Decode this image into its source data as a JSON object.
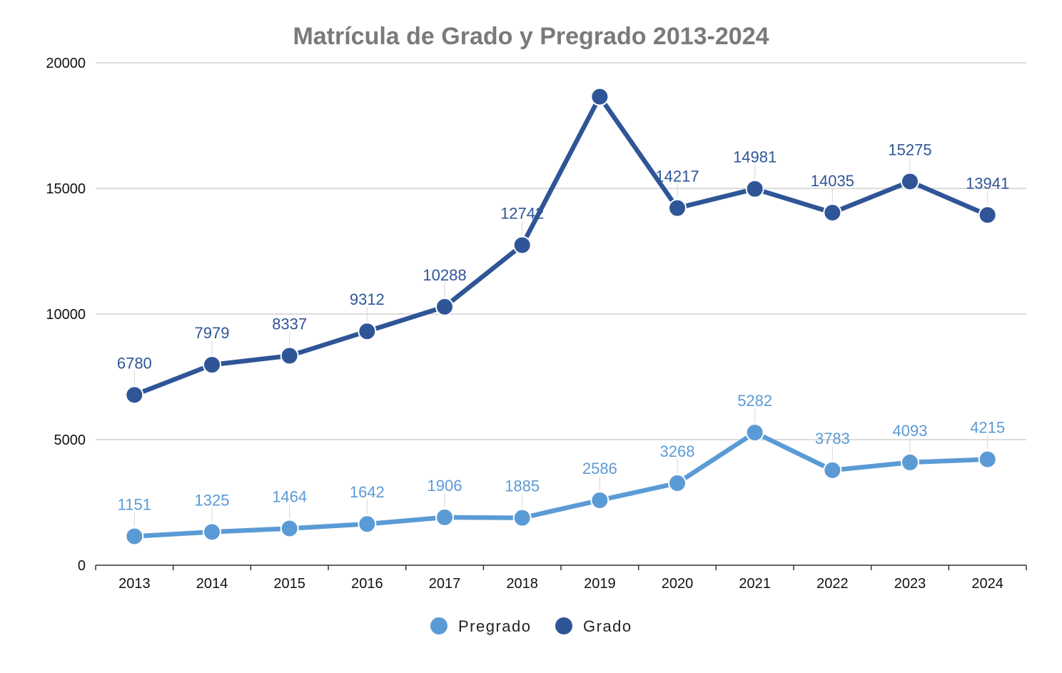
{
  "chart_data": {
    "type": "line",
    "title": "Matrícula de Grado y Pregrado 2013-2024",
    "xlabel": "",
    "ylabel": "",
    "categories": [
      "2013",
      "2014",
      "2015",
      "2016",
      "2017",
      "2018",
      "2019",
      "2020",
      "2021",
      "2022",
      "2023",
      "2024"
    ],
    "ylim": [
      0,
      20000
    ],
    "yticks": [
      0,
      5000,
      10000,
      15000,
      20000
    ],
    "grid": true,
    "legend_position": "bottom",
    "series": [
      {
        "name": "Pregrado",
        "color": "#5b9bd5",
        "values": [
          1151,
          1325,
          1464,
          1642,
          1906,
          1885,
          2586,
          3268,
          5282,
          3783,
          4093,
          4215
        ],
        "labels": [
          "1151",
          "1325",
          "1464",
          "1642",
          "1906",
          "1885",
          "2586",
          "3268",
          "5282",
          "3783",
          "4093",
          "4215"
        ]
      },
      {
        "name": "Grado",
        "color": "#2f5597",
        "values": [
          6780,
          7979,
          8337,
          9312,
          10288,
          12742,
          18650,
          14217,
          14981,
          14035,
          15275,
          13941
        ],
        "labels": [
          "6780",
          "7979",
          "8337",
          "9312",
          "10288",
          "12742",
          "",
          "14217",
          "14981",
          "14035",
          "15275",
          "13941"
        ]
      }
    ]
  }
}
